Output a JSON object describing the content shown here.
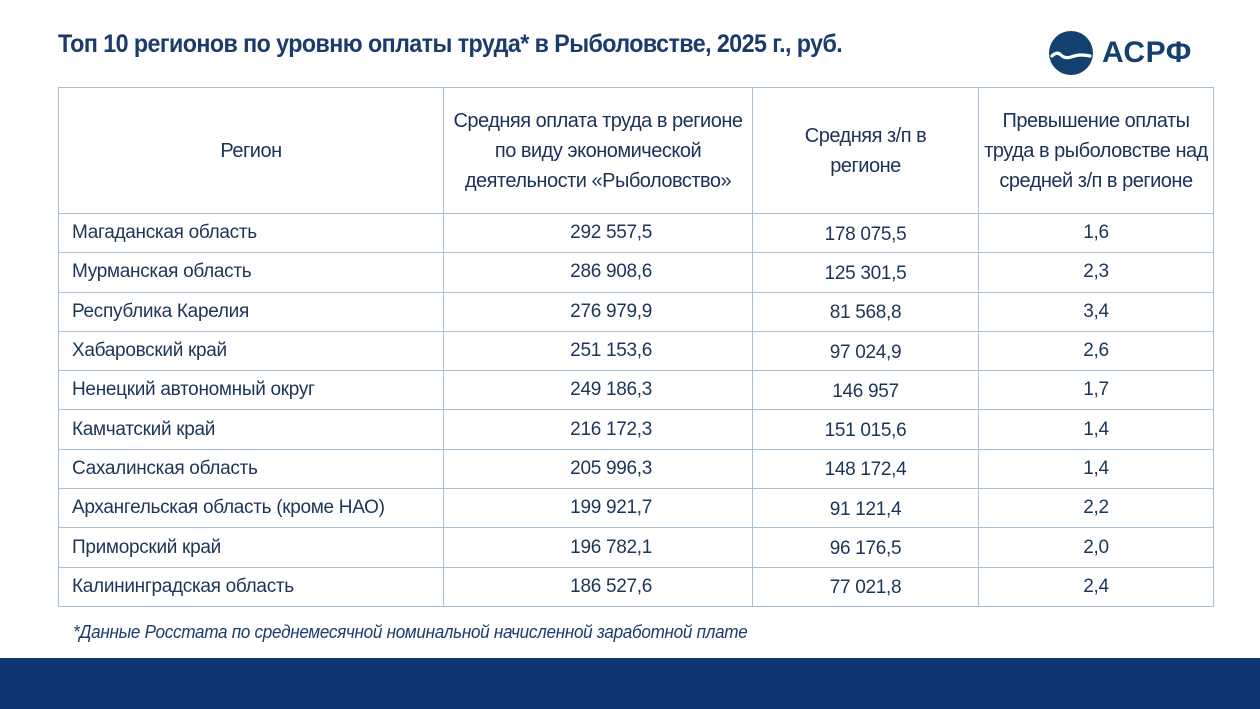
{
  "header": {
    "title": "Топ 10 регионов по уровню оплаты труда* в Рыболовстве, 2025 г., руб.",
    "logo": {
      "icon": "wave-circle-logo-icon",
      "text": "АСРФ",
      "color": "#13406f"
    }
  },
  "table": {
    "columns": [
      "Регион",
      "Средняя оплата труда в регионе по виду экономической деятельности «Рыболовство»",
      "Средняя з/п в регионе",
      "Превышение оплаты труда в рыболовстве над средней з/п в регионе"
    ],
    "rows": [
      {
        "region": "Магаданская область",
        "fishing_wage": "292 557,5",
        "avg_wage": "178 075,5",
        "ratio": "1,6"
      },
      {
        "region": "Мурманская область",
        "fishing_wage": "286 908,6",
        "avg_wage": "125 301,5",
        "ratio": "2,3"
      },
      {
        "region": "Республика Карелия",
        "fishing_wage": "276 979,9",
        "avg_wage": "81 568,8",
        "ratio": "3,4"
      },
      {
        "region": "Хабаровский край",
        "fishing_wage": "251 153,6",
        "avg_wage": "97 024,9",
        "ratio": "2,6"
      },
      {
        "region": "Ненецкий автономный округ",
        "fishing_wage": "249 186,3",
        "avg_wage": "146 957",
        "ratio": "1,7"
      },
      {
        "region": "Камчатский край",
        "fishing_wage": "216 172,3",
        "avg_wage": "151 015,6",
        "ratio": "1,4"
      },
      {
        "region": "Сахалинская область",
        "fishing_wage": "205 996,3",
        "avg_wage": "148 172,4",
        "ratio": "1,4"
      },
      {
        "region": "Архангельская область (кроме НАО)",
        "fishing_wage": "199 921,7",
        "avg_wage": "91 121,4",
        "ratio": "2,2"
      },
      {
        "region": "Приморский край",
        "fishing_wage": "196 782,1",
        "avg_wage": "96 176,5",
        "ratio": "2,0"
      },
      {
        "region": "Калининградская область",
        "fishing_wage": "186 527,6",
        "avg_wage": "77 021,8",
        "ratio": "2,4"
      }
    ]
  },
  "footnote": "*Данные Росстата по среднемесячной номинальной начисленной заработной плате",
  "colors": {
    "title": "#1a3b6b",
    "border": "#a8c0d6",
    "band": "#0c3572",
    "text": "#1c3557"
  }
}
